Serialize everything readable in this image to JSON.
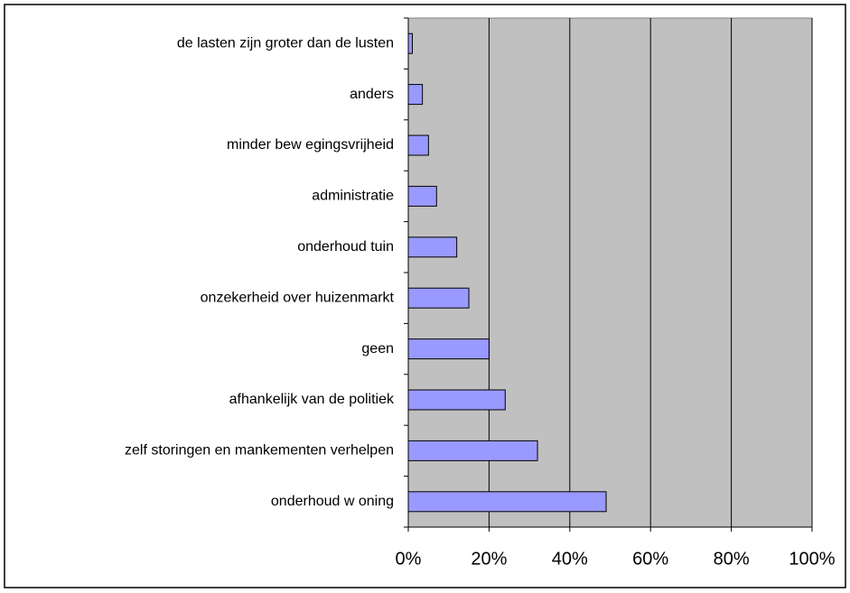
{
  "chart_data": {
    "type": "barh",
    "categories": [
      "de lasten zijn groter dan de lusten",
      "anders",
      "minder bew egingsvrijheid",
      "administratie",
      "onderhoud tuin",
      "onzekerheid over huizenmarkt",
      "geen",
      "afhankelijk van de politiek",
      "zelf storingen en mankementen verhelpen",
      "onderhoud w oning"
    ],
    "values": [
      1,
      3.5,
      5,
      7,
      12,
      15,
      20,
      24,
      32,
      49
    ],
    "color": "#9999ff",
    "xlim": [
      0,
      100
    ],
    "xticks": [
      {
        "value": 0,
        "label": "0%"
      },
      {
        "value": 20,
        "label": "20%"
      },
      {
        "value": 40,
        "label": "40%"
      },
      {
        "value": 60,
        "label": "60%"
      },
      {
        "value": 80,
        "label": "80%"
      },
      {
        "value": 100,
        "label": "100%"
      }
    ],
    "grid": true
  }
}
